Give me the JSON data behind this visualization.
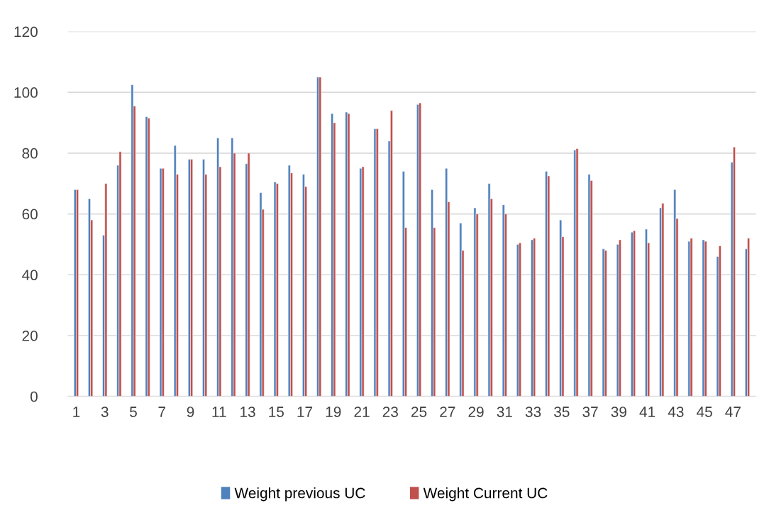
{
  "chart_data": {
    "type": "bar",
    "categories": [
      "1",
      null,
      "3",
      null,
      "5",
      null,
      "7",
      null,
      "9",
      null,
      "11",
      null,
      "13",
      null,
      "15",
      null,
      "17",
      null,
      "19",
      null,
      "21",
      null,
      "23",
      null,
      "25",
      null,
      "27",
      null,
      "29",
      null,
      "31",
      null,
      "33",
      null,
      "35",
      null,
      "37",
      null,
      "39",
      null,
      "41",
      null,
      "43",
      null,
      "45",
      null,
      "47",
      null
    ],
    "series": [
      {
        "name": "Weight previous UC",
        "color": "#4f81bd",
        "values": [
          68,
          65,
          53,
          76,
          102.5,
          92,
          75,
          82.5,
          78,
          78,
          85,
          85,
          76.5,
          67,
          70.5,
          76,
          73,
          105,
          93,
          93.5,
          75,
          88,
          84,
          74,
          96,
          68,
          75,
          57,
          62,
          70,
          63,
          50,
          51.5,
          74,
          58,
          81,
          73,
          48.5,
          50,
          54,
          55,
          62,
          68,
          51,
          51.5,
          46,
          77,
          48.5
        ]
      },
      {
        "name": "Weight Current UC",
        "color": "#c0504d",
        "values": [
          68,
          58,
          70,
          80.5,
          95.5,
          91.5,
          75,
          73,
          78,
          73,
          75.5,
          80,
          80,
          61.5,
          70,
          73.5,
          69,
          105,
          90,
          93,
          75.5,
          88,
          94,
          55.5,
          96.5,
          55.5,
          64,
          48,
          60,
          65,
          60,
          50.5,
          52,
          72.5,
          52.5,
          81.5,
          71,
          48,
          51.5,
          54.5,
          50.5,
          63.5,
          58.5,
          52,
          51,
          49.5,
          82,
          52
        ]
      }
    ],
    "ylim": [
      0,
      120
    ],
    "yticks": [
      0,
      20,
      40,
      60,
      80,
      100,
      120
    ],
    "grid": "y",
    "legend": "bottom"
  }
}
